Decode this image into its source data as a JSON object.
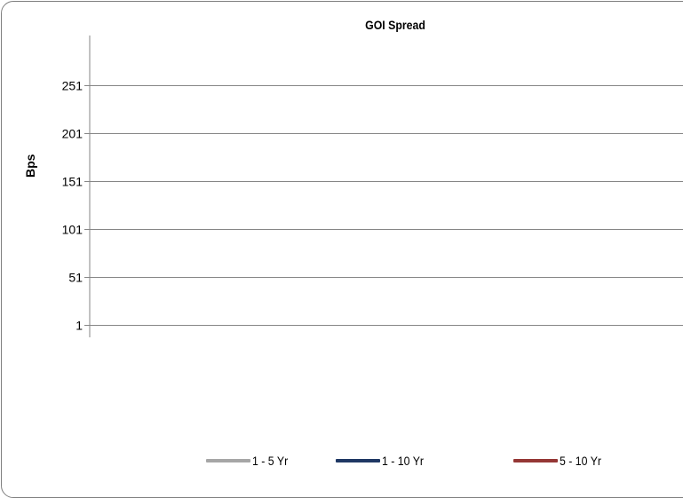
{
  "chart_data": {
    "type": "line",
    "title": "GOI Spread",
    "xlabel": "",
    "ylabel": "Bps",
    "yticks": [
      1,
      51,
      101,
      151,
      201,
      251
    ],
    "ylim": [
      1,
      301
    ],
    "grid": true,
    "legend": "bottom",
    "series": [
      {
        "name": "1 - 5 Yr",
        "color": "#a6a6a6",
        "values": []
      },
      {
        "name": "1 - 10 Yr",
        "color": "#1f3864",
        "values": []
      },
      {
        "name": "5 - 10 Yr",
        "color": "#953735",
        "values": []
      }
    ]
  }
}
